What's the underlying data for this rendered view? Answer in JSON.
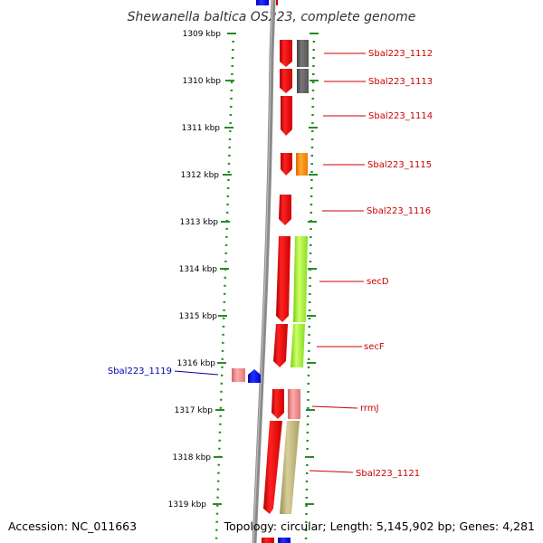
{
  "title": "Shewanella baltica OS223, complete genome",
  "accession": "Accession: NC_011663",
  "topology": "Topology: circular; Length: 5,145,902 bp; Genes: 4,281",
  "colors": {
    "backbone": "#888888",
    "ruler": "#2a8a2a",
    "forward_label": "#cc0000",
    "reverse_label": "#0000aa",
    "gene_red": "#ee1111",
    "gene_blue": "#1111ee",
    "gene_pink": "#ee8888"
  },
  "ticks": [
    "1309 kbp",
    "1310 kbp",
    "1311 kbp",
    "1312 kbp",
    "1313 kbp",
    "1314 kbp",
    "1315 kbp",
    "1316 kbp",
    "1317 kbp",
    "1318 kbp",
    "1319 kbp"
  ],
  "genes": [
    {
      "label": "Sbal223_1112",
      "strand": "+",
      "category_color": "#666666"
    },
    {
      "label": "Sbal223_1113",
      "strand": "+",
      "category_color": "#666666"
    },
    {
      "label": "Sbal223_1114",
      "strand": "+",
      "category_color": ""
    },
    {
      "label": "Sbal223_1115",
      "strand": "+",
      "category_color": "#ff8800"
    },
    {
      "label": "Sbal223_1116",
      "strand": "+",
      "category_color": ""
    },
    {
      "label": "secD",
      "strand": "+",
      "category_color": "#99ee22"
    },
    {
      "label": "secF",
      "strand": "+",
      "category_color": "#99ee22"
    },
    {
      "label": "Sbal223_1119",
      "strand": "-",
      "category_color": ""
    },
    {
      "label": "rrmJ",
      "strand": "+",
      "category_color": "#ee8888"
    },
    {
      "label": "Sbal223_1121",
      "strand": "+",
      "category_color": "#bbb077"
    }
  ]
}
